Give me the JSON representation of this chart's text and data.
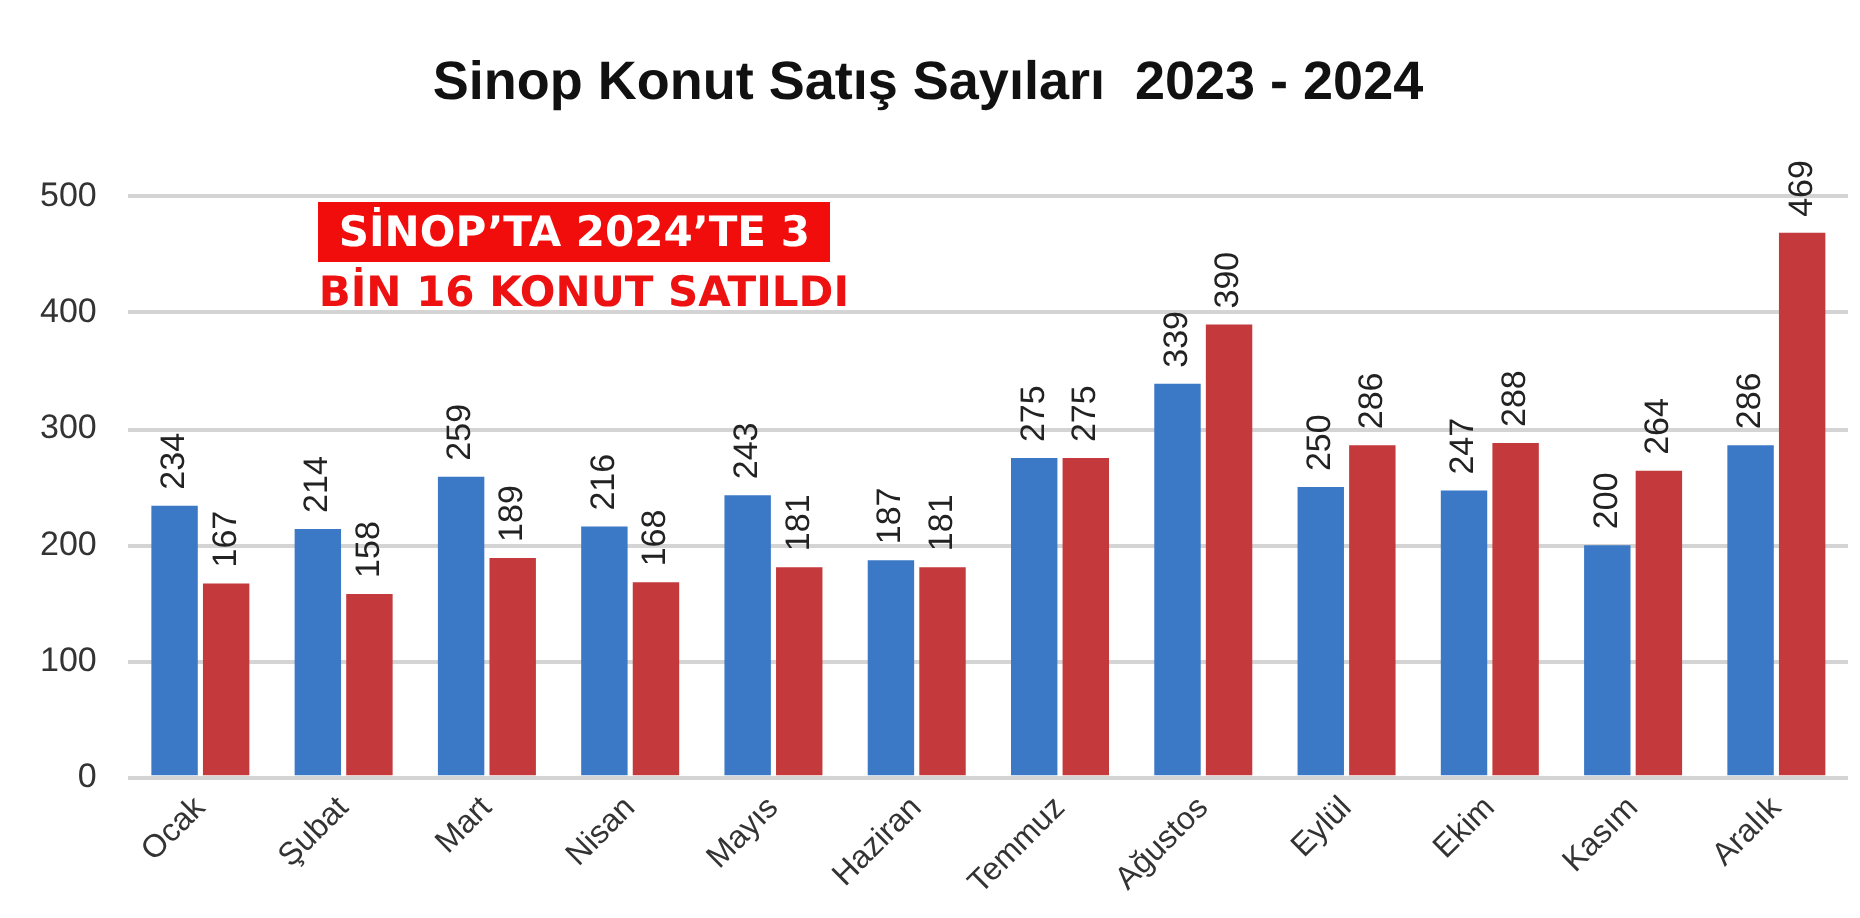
{
  "chart_data": {
    "type": "bar",
    "title": "Sinop Konut Satış Sayıları  2023 - 2024",
    "categories": [
      "Ocak",
      "Şubat",
      "Mart",
      "Nisan",
      "Mayıs",
      "Haziran",
      "Temmuz",
      "Ağustos",
      "Eylül",
      "Ekim",
      "Kasım",
      "Aralık"
    ],
    "series": [
      {
        "color": "#3b78c6",
        "values": [
          234,
          214,
          259,
          216,
          243,
          187,
          275,
          339,
          250,
          247,
          200,
          286
        ]
      },
      {
        "color": "#c4393b",
        "values": [
          167,
          158,
          189,
          168,
          181,
          181,
          275,
          390,
          286,
          288,
          264,
          469
        ]
      }
    ],
    "ylim": [
      0,
      500
    ],
    "yticks": [
      0,
      100,
      200,
      300,
      400,
      500
    ],
    "grid": "y",
    "data_labels": true,
    "annotations": [
      "SİNOP’TA 2024’TE 3",
      "BİN 16 KONUT SATILDI"
    ]
  }
}
